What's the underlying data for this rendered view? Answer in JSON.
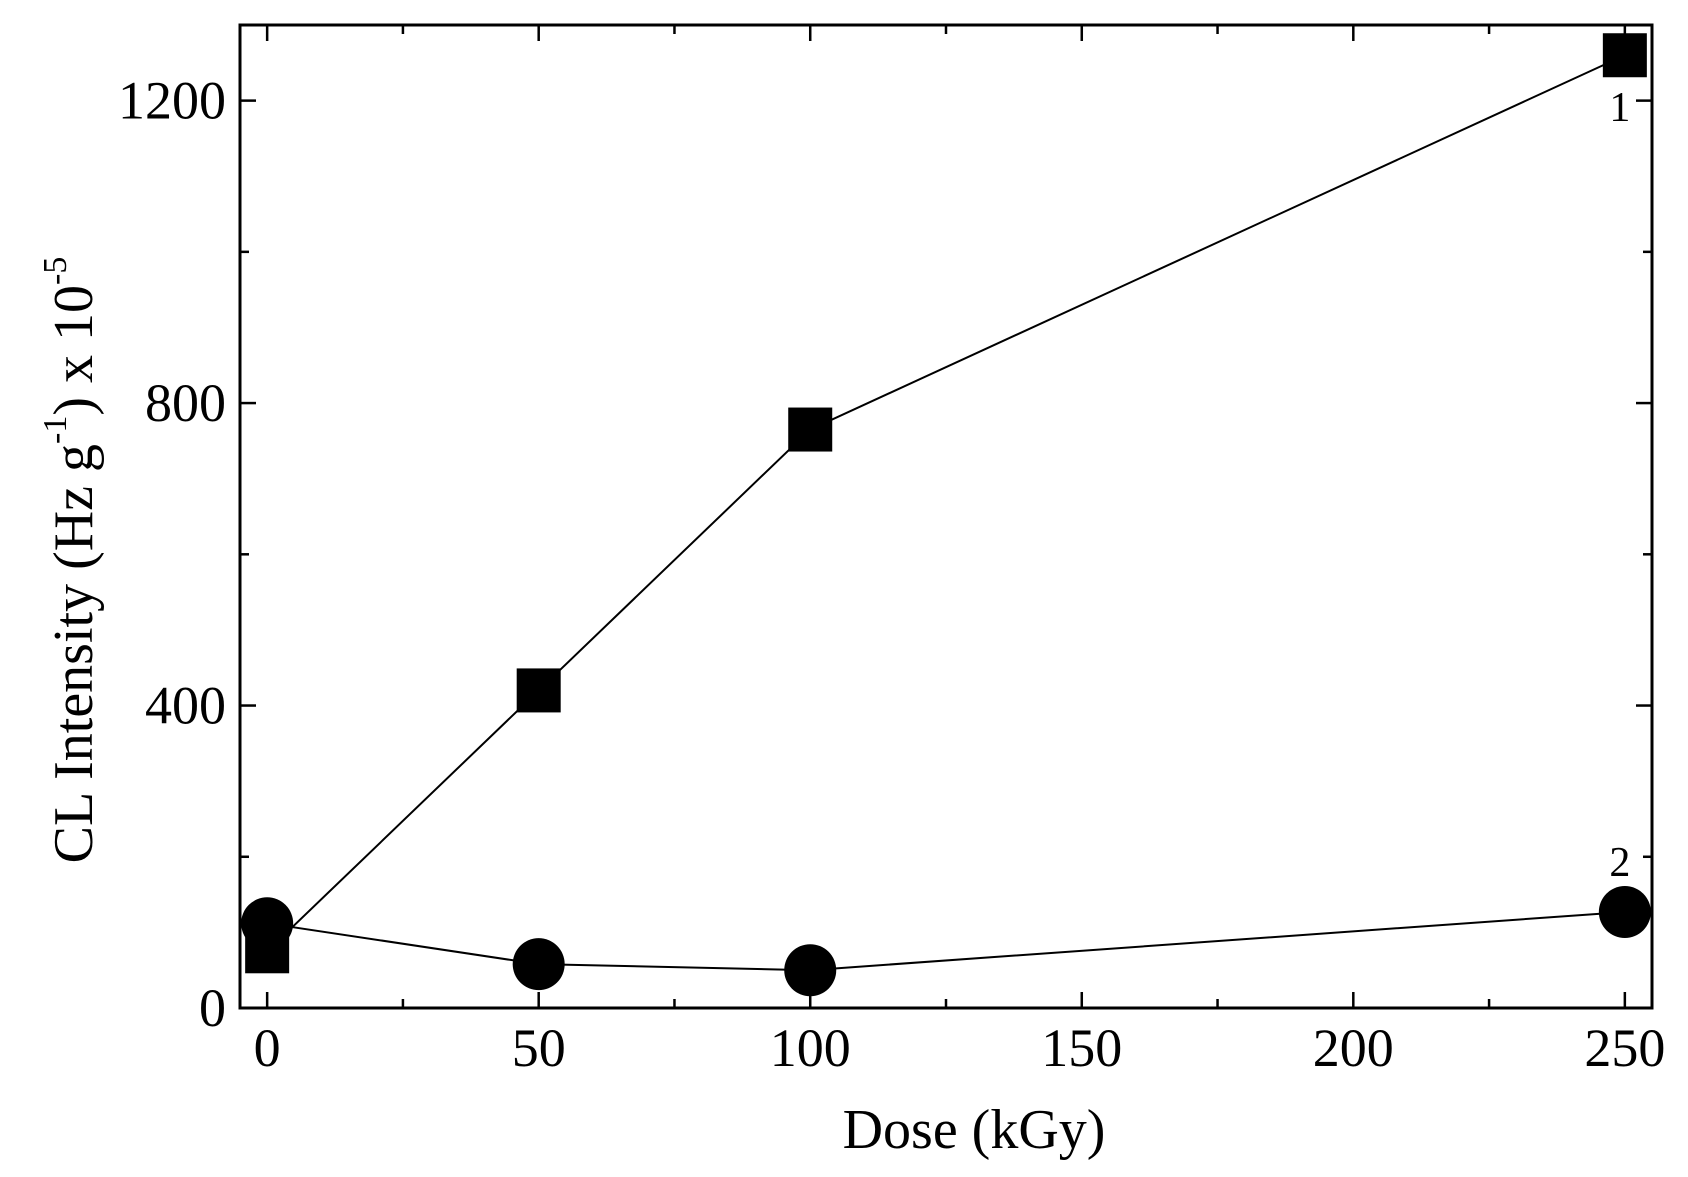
{
  "chart_data": {
    "type": "line",
    "title": "",
    "xlabel": "Dose (kGy)",
    "ylabel": {
      "prefix": "CL Intensity (Hz g",
      "sup1": "-1",
      "mid": ") x 10",
      "sup2": "-5"
    },
    "xlim": [
      -5,
      255
    ],
    "ylim": [
      0,
      1300
    ],
    "x_ticks_major": [
      0,
      50,
      100,
      150,
      200,
      250
    ],
    "x_ticks_minor": [
      25,
      75,
      125,
      175,
      225
    ],
    "y_ticks_major": [
      0,
      400,
      800,
      1200
    ],
    "y_ticks_minor": [
      200,
      600,
      1000
    ],
    "grid": false,
    "series": [
      {
        "label": "1",
        "marker": "square",
        "color": "#000000",
        "x": [
          0,
          50,
          100,
          250
        ],
        "y": [
          75,
          420,
          765,
          1260
        ]
      },
      {
        "label": "2",
        "marker": "circle",
        "color": "#000000",
        "x": [
          0,
          50,
          100,
          250
        ],
        "y": [
          112,
          58,
          50,
          127
        ]
      }
    ]
  }
}
